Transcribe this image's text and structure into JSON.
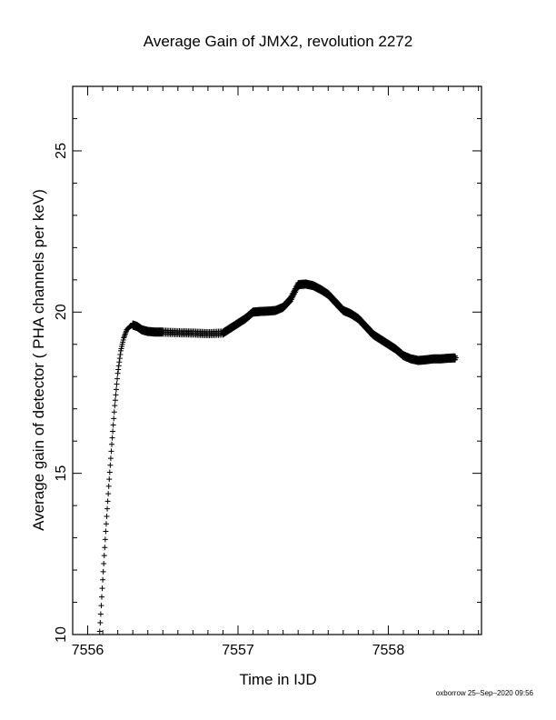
{
  "chart_data": {
    "type": "scatter",
    "title": "Average Gain of JMX2, revolution 2272",
    "xlabel": "Time in IJD",
    "ylabel": "Average gain of detector ( PHA channels per keV)",
    "xlim": [
      7555.9,
      7558.62
    ],
    "ylim": [
      10,
      27
    ],
    "xticks": [
      7556,
      7557,
      7558
    ],
    "yticks": [
      10,
      15,
      20,
      25
    ],
    "marker": "+",
    "color": "#000000",
    "grid": false,
    "series": [
      {
        "x": [
          7556.08,
          7556.1,
          7556.12,
          7556.14,
          7556.16,
          7556.18,
          7556.2,
          7556.22,
          7556.24,
          7556.26,
          7556.28,
          7556.3,
          7556.33,
          7556.36,
          7556.4,
          7556.45,
          7556.5,
          7556.6,
          7556.7,
          7556.8,
          7556.9,
          7556.95,
          7557.0,
          7557.05,
          7557.1,
          7557.15,
          7557.2,
          7557.25,
          7557.3,
          7557.35,
          7557.4,
          7557.45,
          7557.5,
          7557.55,
          7557.6,
          7557.65,
          7557.7,
          7557.75,
          7557.8,
          7557.85,
          7557.9,
          7557.95,
          7558.0,
          7558.05,
          7558.1,
          7558.15,
          7558.2,
          7558.25,
          7558.3,
          7558.35,
          7558.4,
          7558.45
        ],
        "y": [
          10.1,
          11.7,
          13.2,
          14.6,
          15.9,
          17.1,
          18.1,
          18.8,
          19.2,
          19.45,
          19.55,
          19.6,
          19.55,
          19.45,
          19.4,
          19.38,
          19.38,
          19.36,
          19.35,
          19.33,
          19.35,
          19.5,
          19.65,
          19.8,
          20.0,
          20.02,
          20.03,
          20.05,
          20.15,
          20.4,
          20.85,
          20.87,
          20.82,
          20.7,
          20.55,
          20.3,
          20.05,
          19.95,
          19.8,
          19.55,
          19.3,
          19.15,
          19.0,
          18.85,
          18.65,
          18.55,
          18.5,
          18.52,
          18.55,
          18.55,
          18.57,
          18.58
        ]
      }
    ]
  },
  "footer": "oxborrow 25–Sep–2020 09:56"
}
